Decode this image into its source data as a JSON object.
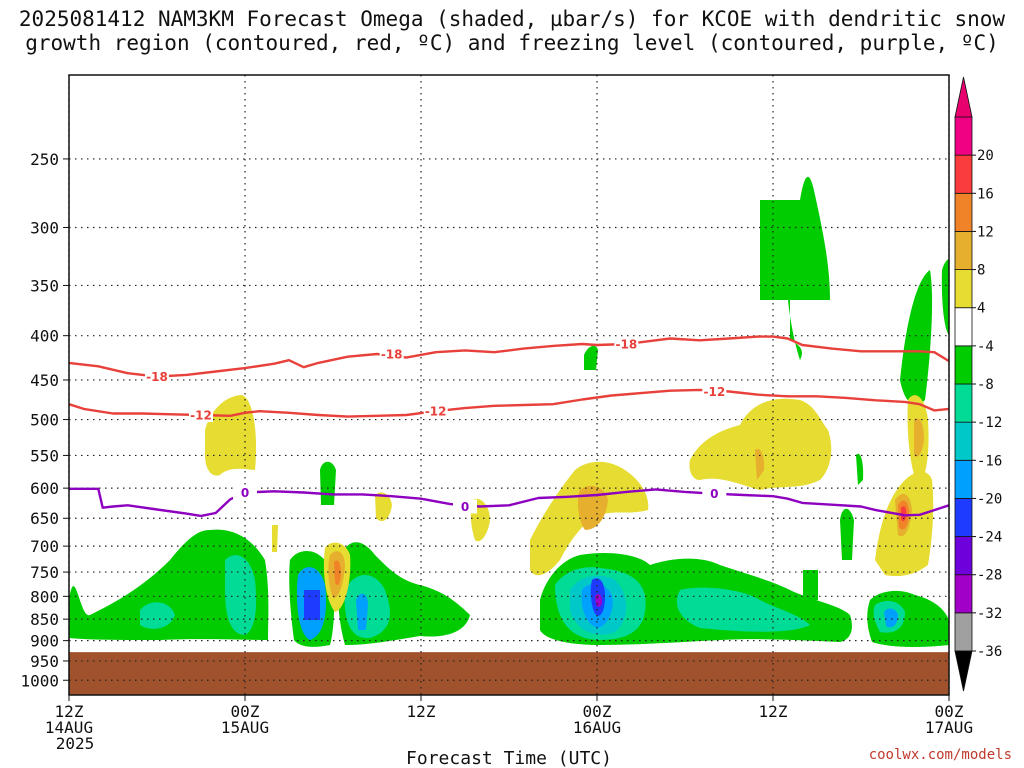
{
  "title_line1": "2025081412 NAM3KM Forecast Omega (shaded, µbar/s) for KCOE with dendritic snow",
  "title_line2": "growth region (contoured, red, ºC) and freezing level (contoured, purple, ºC)",
  "credit": "coolwx.com/models",
  "chart_data": {
    "type": "heatmap",
    "title": "2025081412 NAM3KM Forecast Omega (shaded, µbar/s) for KCOE with dendritic snow growth region (contoured, red, ºC) and freezing level (contoured, purple, ºC)",
    "xlabel": "Forecast Time (UTC)",
    "ylabel": "",
    "x_ticks": [
      {
        "hour": 0,
        "label1": "12Z",
        "label2": "14AUG",
        "label3": "2025"
      },
      {
        "hour": 12,
        "label1": "00Z",
        "label2": "15AUG",
        "label3": ""
      },
      {
        "hour": 24,
        "label1": "12Z",
        "label2": "",
        "label3": ""
      },
      {
        "hour": 36,
        "label1": "00Z",
        "label2": "16AUG",
        "label3": ""
      },
      {
        "hour": 48,
        "label1": "12Z",
        "label2": "",
        "label3": ""
      },
      {
        "hour": 60,
        "label1": "00Z",
        "label2": "17AUG",
        "label3": ""
      }
    ],
    "xlim": [
      0,
      60
    ],
    "y_scale": "log",
    "ylim": [
      1040,
      200
    ],
    "y_ticks": [
      250,
      300,
      350,
      400,
      450,
      500,
      550,
      600,
      650,
      700,
      750,
      800,
      850,
      900,
      950,
      1000
    ],
    "grid": true,
    "terrain_top_hpa": 928,
    "colorbar": {
      "units": "µbar/s",
      "levels": [
        "-36",
        "-32",
        "-28",
        "-24",
        "-20",
        "-16",
        "-12",
        "-8",
        "-4",
        "4",
        "8",
        "12",
        "16",
        "20"
      ],
      "colors": [
        "#a0a0a0",
        "#a000c8",
        "#6e00dc",
        "#1e3cff",
        "#00a0ff",
        "#00c8c8",
        "#00dc96",
        "#00cc00",
        "#ffffff",
        "#e6dc32",
        "#e6af2d",
        "#f08228",
        "#fa3c3c",
        "#f00082"
      ],
      "under_color": "#000000",
      "over_color": "#e8006e"
    },
    "contours": [
      {
        "name": "-18",
        "color": "#e8403a",
        "label": "-18",
        "points": [
          [
            0,
            430
          ],
          [
            2,
            434
          ],
          [
            4,
            442
          ],
          [
            6,
            446
          ],
          [
            8,
            444
          ],
          [
            10,
            440
          ],
          [
            12,
            436
          ],
          [
            14,
            431
          ],
          [
            15,
            427
          ],
          [
            16,
            435
          ],
          [
            17,
            430
          ],
          [
            19,
            423
          ],
          [
            21,
            420
          ],
          [
            23,
            424
          ],
          [
            25,
            418
          ],
          [
            27,
            416
          ],
          [
            29,
            418
          ],
          [
            31,
            414
          ],
          [
            33,
            411
          ],
          [
            35,
            409
          ],
          [
            36,
            410
          ],
          [
            38,
            409
          ],
          [
            40,
            405
          ],
          [
            41,
            403
          ],
          [
            43,
            405
          ],
          [
            45,
            403
          ],
          [
            47,
            401
          ],
          [
            48,
            401
          ],
          [
            49,
            403
          ],
          [
            50,
            410
          ],
          [
            52,
            414
          ],
          [
            54,
            417
          ],
          [
            56,
            417
          ],
          [
            58,
            417
          ],
          [
            59,
            418
          ],
          [
            60,
            428
          ]
        ],
        "labels": [
          [
            6,
            446
          ],
          [
            22,
            420
          ],
          [
            38,
            409
          ]
        ]
      },
      {
        "name": "-12",
        "color": "#e8403a",
        "label": "-12",
        "points": [
          [
            0,
            480
          ],
          [
            1,
            486
          ],
          [
            3,
            492
          ],
          [
            5,
            492
          ],
          [
            7,
            493
          ],
          [
            9,
            494
          ],
          [
            11,
            495
          ],
          [
            12,
            491
          ],
          [
            13,
            489
          ],
          [
            15,
            491
          ],
          [
            17,
            494
          ],
          [
            19,
            496
          ],
          [
            21,
            495
          ],
          [
            23,
            494
          ],
          [
            25,
            489
          ],
          [
            27,
            485
          ],
          [
            29,
            482
          ],
          [
            31,
            481
          ],
          [
            33,
            480
          ],
          [
            35,
            474
          ],
          [
            37,
            469
          ],
          [
            39,
            466
          ],
          [
            41,
            463
          ],
          [
            43,
            462
          ],
          [
            45,
            464
          ],
          [
            47,
            468
          ],
          [
            49,
            470
          ],
          [
            51,
            470
          ],
          [
            53,
            472
          ],
          [
            55,
            475
          ],
          [
            57,
            477
          ],
          [
            58,
            480
          ],
          [
            59,
            488
          ],
          [
            60,
            486
          ]
        ],
        "labels": [
          [
            9,
            494
          ],
          [
            25,
            489
          ],
          [
            44,
            464
          ]
        ]
      },
      {
        "name": "0",
        "color": "#8e00c0",
        "label": "0",
        "points": [
          [
            0,
            601
          ],
          [
            2,
            601
          ],
          [
            2.3,
            632
          ],
          [
            3,
            630
          ],
          [
            4,
            628
          ],
          [
            6,
            635
          ],
          [
            8,
            642
          ],
          [
            9,
            646
          ],
          [
            10,
            641
          ],
          [
            11,
            618
          ],
          [
            12,
            607
          ],
          [
            14,
            605
          ],
          [
            16,
            607
          ],
          [
            18,
            610
          ],
          [
            20,
            610
          ],
          [
            22,
            613
          ],
          [
            24,
            617
          ],
          [
            26,
            626
          ],
          [
            28,
            630
          ],
          [
            30,
            628
          ],
          [
            32,
            616
          ],
          [
            34,
            614
          ],
          [
            36,
            611
          ],
          [
            38,
            606
          ],
          [
            40,
            602
          ],
          [
            42,
            606
          ],
          [
            44,
            609
          ],
          [
            46,
            611
          ],
          [
            48,
            613
          ],
          [
            49,
            617
          ],
          [
            50,
            624
          ],
          [
            52,
            627
          ],
          [
            54,
            630
          ],
          [
            55,
            636
          ],
          [
            57,
            645
          ],
          [
            58,
            644
          ],
          [
            59,
            636
          ],
          [
            60,
            628
          ]
        ],
        "labels": [
          [
            12,
            607
          ],
          [
            27,
            630
          ],
          [
            44,
            609
          ]
        ]
      }
    ]
  }
}
